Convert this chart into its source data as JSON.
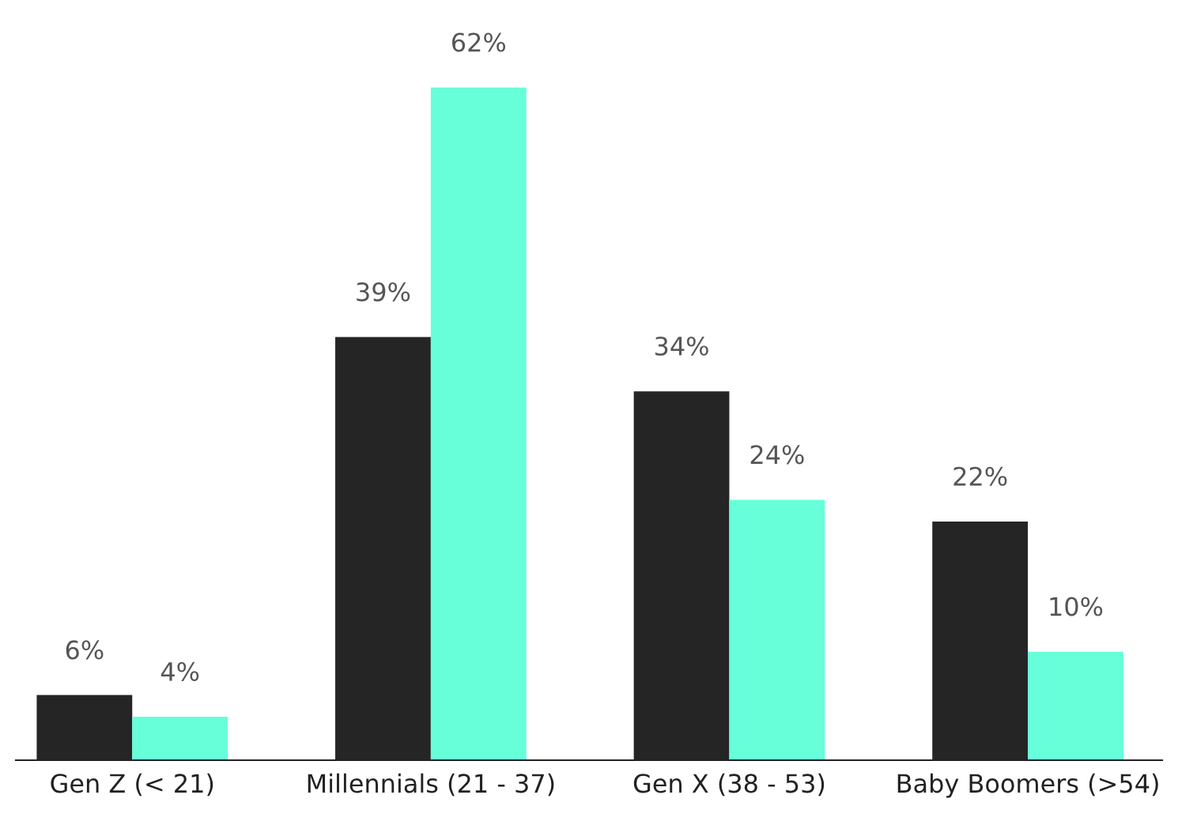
{
  "chart_data": {
    "type": "bar",
    "categories": [
      "Gen Z (< 21)",
      "Millennials (21 - 37)",
      "Gen X (38 - 53)",
      "Baby Boomers (>54)"
    ],
    "series": [
      {
        "color": "#252525",
        "values": [
          6,
          39,
          34,
          22
        ],
        "value_labels": [
          "6%",
          "39%",
          "34%",
          "22%"
        ]
      },
      {
        "color": "#66ffd9",
        "values": [
          4,
          62,
          24,
          10
        ],
        "value_labels": [
          "4%",
          "62%",
          "24%",
          "10%"
        ]
      }
    ],
    "grid": false,
    "legend": false
  }
}
